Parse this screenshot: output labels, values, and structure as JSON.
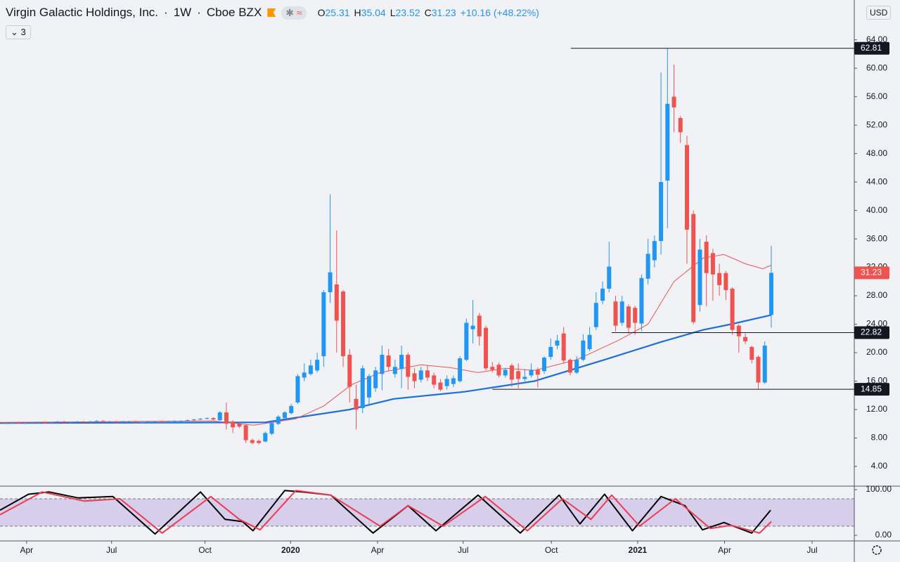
{
  "chart_data": {
    "type": "candlestick",
    "title": "Virgin Galactic Holdings, Inc.",
    "interval": "1W",
    "exchange": "Cboe BZX",
    "indicators_badge": 3,
    "ohlc_labels": [
      "O",
      "H",
      "L",
      "C"
    ],
    "change": "+10.16 (+48.22%)",
    "currency": "USD",
    "up_color": "#2196f3",
    "down_color": "#ef5350",
    "x": [
      -44,
      -43,
      -42,
      -41,
      -40,
      -39,
      -38,
      -37,
      -36,
      -35,
      -34,
      -33,
      -32,
      -31,
      -30,
      -29,
      -28,
      -27,
      -26,
      -25,
      -24,
      -23,
      -22,
      -21,
      -20,
      -19,
      -18,
      -17,
      -16,
      -15,
      -14,
      -13,
      -12,
      -11,
      -10,
      -9,
      -8,
      -7,
      -6,
      -5,
      -4,
      -3,
      -2,
      -1,
      0,
      1,
      2,
      3,
      4,
      5,
      6,
      7,
      8,
      9,
      10,
      11,
      12,
      13,
      14,
      15,
      16,
      17,
      18,
      19,
      20,
      21,
      22,
      23,
      24,
      25,
      26,
      27,
      28,
      29,
      30,
      31,
      32,
      33,
      34,
      35,
      36,
      37,
      38,
      39,
      40,
      41,
      42,
      43,
      44,
      45,
      46,
      47,
      48,
      49,
      50,
      51,
      52,
      53,
      54,
      55,
      56,
      57,
      58,
      59,
      60,
      61,
      62,
      63,
      64,
      65,
      66,
      67,
      68,
      69,
      70,
      71,
      72,
      73,
      74
    ],
    "open": [
      10.1,
      10.1,
      10.2,
      10.1,
      10.1,
      10.2,
      10.2,
      10.1,
      10.2,
      10.3,
      10.2,
      10.2,
      10.3,
      10.2,
      10.3,
      10.4,
      10.3,
      10.3,
      10.2,
      10.3,
      10.3,
      10.2,
      10.2,
      10.3,
      10.3,
      10.2,
      10.3,
      10.4,
      10.4,
      10.5,
      10.6,
      10.7,
      10.8,
      10.5,
      11.6,
      10.3,
      10.0,
      9.8,
      7.7,
      7.6,
      7.5,
      8.6,
      10.0,
      10.8,
      11.5,
      13.0,
      16.5,
      17.0,
      17.5,
      19.5,
      28.5,
      29.6,
      28.6,
      19.7,
      13.5,
      12.2,
      13.7,
      15.0,
      17.0,
      19.6,
      17.0,
      17.7,
      19.7,
      17.1,
      16.2,
      17.5,
      16.8,
      15.8,
      15.3,
      15.6,
      16.0,
      19.0,
      23.3,
      25.2,
      23.5,
      18.0,
      18.3,
      16.8,
      18.2,
      17.4,
      16.3,
      16.8,
      17.6,
      17.4,
      19.4,
      21.0,
      22.7,
      19.0,
      17.2,
      19.0,
      20.5,
      23.6,
      27.3,
      29.0,
      27.2,
      24.2,
      26.5,
      26.3,
      24.1,
      30.4,
      33.0,
      35.7,
      44.2,
      56.0,
      53.0,
      49.2,
      39.5,
      26.7,
      35.6,
      34.0,
      31.2,
      31.2,
      29.0,
      23.8,
      22.2,
      20.8,
      19.4,
      15.8,
      25.31
    ],
    "high": [
      10.2,
      10.3,
      10.3,
      10.2,
      10.3,
      10.3,
      10.3,
      10.3,
      10.4,
      10.4,
      10.3,
      10.4,
      10.4,
      10.4,
      10.5,
      10.5,
      10.4,
      10.4,
      10.4,
      10.4,
      10.4,
      10.3,
      10.4,
      10.4,
      10.4,
      10.4,
      10.5,
      10.5,
      10.6,
      10.7,
      10.8,
      10.9,
      10.9,
      11.8,
      13.0,
      10.5,
      10.2,
      9.9,
      7.9,
      7.8,
      8.9,
      10.3,
      11.2,
      11.8,
      12.8,
      17.0,
      18.5,
      19.0,
      20.0,
      28.8,
      42.3,
      37.2,
      28.8,
      20.5,
      15.5,
      18.2,
      17.0,
      18.0,
      21.0,
      20.5,
      19.0,
      21.0,
      20.0,
      17.8,
      18.0,
      18.2,
      17.2,
      16.3,
      16.8,
      16.8,
      19.5,
      24.8,
      27.4,
      25.6,
      23.8,
      18.7,
      18.6,
      17.8,
      18.5,
      18.5,
      17.7,
      18.5,
      17.9,
      19.5,
      22.0,
      22.5,
      23.6,
      19.2,
      19.5,
      22.6,
      23.6,
      28.5,
      30.0,
      35.6,
      28.0,
      28.0,
      26.8,
      26.6,
      31.0,
      36.0,
      36.5,
      59.4,
      62.81,
      60.5,
      53.3,
      50.5,
      40.0,
      36.0,
      36.5,
      34.6,
      32.5,
      31.5,
      29.2,
      24.0,
      22.7,
      21.0,
      19.6,
      21.6,
      35.04
    ],
    "low": [
      10.0,
      10.0,
      10.0,
      10.0,
      10.0,
      10.1,
      10.0,
      10.0,
      10.1,
      10.1,
      10.1,
      10.1,
      10.1,
      10.1,
      10.2,
      10.2,
      10.2,
      10.1,
      10.1,
      10.2,
      10.1,
      10.1,
      10.1,
      10.2,
      10.1,
      10.1,
      10.2,
      10.3,
      10.3,
      10.4,
      10.5,
      10.6,
      10.5,
      10.4,
      9.2,
      8.7,
      9.4,
      7.3,
      7.1,
      7.1,
      7.4,
      8.4,
      9.8,
      10.6,
      11.3,
      12.8,
      16.0,
      16.8,
      17.2,
      18.0,
      27.0,
      20.0,
      18.0,
      13.0,
      9.2,
      11.5,
      12.5,
      14.5,
      14.7,
      17.5,
      16.5,
      15.0,
      14.8,
      15.0,
      15.8,
      16.0,
      15.0,
      14.6,
      14.8,
      15.2,
      15.8,
      18.8,
      21.3,
      21.0,
      17.5,
      17.2,
      16.5,
      16.5,
      15.2,
      15.0,
      16.0,
      16.5,
      15.1,
      17.0,
      19.0,
      20.5,
      18.5,
      16.8,
      17.0,
      18.8,
      20.2,
      23.2,
      26.8,
      28.5,
      23.0,
      23.8,
      22.7,
      22.5,
      23.0,
      29.6,
      32.0,
      33.8,
      37.5,
      51.0,
      49.5,
      32.5,
      24.0,
      25.8,
      26.5,
      27.3,
      28.0,
      27.4,
      22.5,
      20.0,
      21.2,
      18.5,
      14.85,
      15.6,
      23.52
    ],
    "close": [
      10.1,
      10.2,
      10.1,
      10.1,
      10.2,
      10.2,
      10.1,
      10.2,
      10.3,
      10.2,
      10.2,
      10.3,
      10.2,
      10.3,
      10.4,
      10.3,
      10.3,
      10.2,
      10.3,
      10.3,
      10.2,
      10.2,
      10.3,
      10.3,
      10.2,
      10.3,
      10.4,
      10.4,
      10.5,
      10.6,
      10.7,
      10.8,
      10.6,
      11.6,
      10.0,
      9.5,
      9.6,
      7.7,
      7.3,
      7.3,
      8.7,
      10.1,
      11.0,
      11.6,
      12.5,
      16.7,
      17.2,
      18.2,
      19.0,
      28.5,
      31.3,
      24.5,
      19.5,
      15.2,
      12.0,
      17.8,
      16.7,
      17.5,
      19.7,
      18.0,
      18.0,
      19.7,
      16.6,
      16.0,
      17.5,
      16.5,
      15.5,
      14.8,
      16.3,
      16.4,
      19.2,
      24.2,
      23.8,
      22.3,
      17.8,
      17.6,
      16.8,
      17.6,
      16.2,
      16.3,
      16.6,
      17.6,
      16.9,
      19.3,
      20.8,
      21.7,
      18.9,
      17.2,
      19.0,
      21.7,
      22.5,
      27.0,
      29.0,
      32.1,
      23.8,
      27.2,
      23.5,
      24.2,
      30.5,
      33.9,
      35.7,
      44.0,
      55.0,
      54.5,
      51.0,
      37.3,
      24.3,
      34.5,
      31.2,
      31.0,
      29.5,
      28.8,
      23.2,
      22.3,
      21.6,
      19.0,
      15.8,
      21.0,
      31.23
    ],
    "xlim": [
      -44.9,
      86.8
    ],
    "xticks": [
      {
        "value": -40.8,
        "label": "Apr"
      },
      {
        "value": -27.7,
        "label": "Jul"
      },
      {
        "value": -13.3,
        "label": "Oct"
      },
      {
        "value": -0.1,
        "label": "2020"
      },
      {
        "value": 13.3,
        "label": "Apr"
      },
      {
        "value": 26.5,
        "label": "Jul"
      },
      {
        "value": 40.1,
        "label": "Oct"
      },
      {
        "value": 53.4,
        "label": "2021"
      },
      {
        "value": 66.8,
        "label": "Apr"
      },
      {
        "value": 80.3,
        "label": "Jul"
      }
    ],
    "ylim": [
      1.23,
      69.6
    ],
    "yticks": [
      {
        "value": 4,
        "label": "4.00"
      },
      {
        "value": 8,
        "label": "8.00"
      },
      {
        "value": 12,
        "label": "12.00"
      },
      {
        "value": 16,
        "label": "16.00"
      },
      {
        "value": 20,
        "label": "20.00"
      },
      {
        "value": 24,
        "label": "24.00"
      },
      {
        "value": 28,
        "label": "28.00"
      },
      {
        "value": 32,
        "label": "32.00"
      },
      {
        "value": 36,
        "label": "36.00"
      },
      {
        "value": 40,
        "label": "40.00"
      },
      {
        "value": 44,
        "label": "44.00"
      },
      {
        "value": 48,
        "label": "48.00"
      },
      {
        "value": 52,
        "label": "52.00"
      },
      {
        "value": 56,
        "label": "56.00"
      },
      {
        "value": 60,
        "label": "60.00"
      },
      {
        "value": 64,
        "label": "64.00"
      }
    ],
    "moving_averages": [
      {
        "color": "#1e6fd9",
        "width": 2.2,
        "x": [
          -44.9,
          -20,
          -4,
          9,
          15.8,
          26.7,
          37.5,
          48.3,
          57,
          63.5,
          67.8,
          74
        ],
        "values": [
          10.1,
          10.15,
          10.2,
          12,
          13.5,
          14.5,
          16,
          19,
          21.5,
          23.2,
          24,
          25.3
        ]
      },
      {
        "color": "#ef5350",
        "width": 1,
        "x": [
          -44.9,
          -12,
          -5.8,
          0.7,
          5,
          9.3,
          13.7,
          20,
          24.5,
          28.8,
          33,
          37.5,
          44,
          50.6,
          55,
          59,
          63.5,
          66.7,
          70,
          72.7,
          74
        ],
        "values": [
          10.2,
          10.4,
          9.8,
          10.7,
          12.5,
          15.5,
          17.2,
          18.3,
          17.9,
          17.2,
          17.8,
          17.5,
          19,
          21.8,
          24,
          30,
          33.3,
          33.8,
          32.5,
          31.8,
          32.3
        ]
      }
    ],
    "levels": [
      {
        "value": 62.81,
        "from": 43.1
      },
      {
        "value": 22.82,
        "from": 49.4
      },
      {
        "value": 14.85,
        "from": 31.0
      }
    ],
    "oscillator": {
      "ylim": [
        -12.3,
        107.7
      ],
      "yticks": [
        {
          "value": 100,
          "label": "100.00"
        },
        {
          "value": 0,
          "label": "0.00"
        }
      ],
      "bands": [
        20,
        80
      ],
      "band_color": "#d1c4e9",
      "series": [
        {
          "color": "#000000",
          "x": [
            -44.9,
            -40.5,
            -37.3,
            -32.9,
            -27.5,
            -21.0,
            -14.0,
            -10.2,
            -7.5,
            -5.9,
            -1.0,
            1.7,
            6.1,
            12.6,
            18.0,
            22.3,
            28.8,
            35.3,
            41.3,
            44.5,
            48.3,
            52.6,
            57.0,
            60.7,
            63.4,
            66.7,
            71.0,
            73.9
          ],
          "values": [
            55,
            90,
            95,
            82,
            85,
            3,
            95,
            35,
            30,
            10,
            98,
            95,
            88,
            5,
            65,
            10,
            88,
            5,
            88,
            25,
            90,
            10,
            85,
            65,
            12,
            28,
            5,
            55
          ]
        },
        {
          "color": "#ef3b50",
          "x": [
            -44.9,
            -38.4,
            -31.9,
            -26.4,
            -19.9,
            -12.4,
            -8.0,
            -4.8,
            0.7,
            6.1,
            13.7,
            18.0,
            23.4,
            29.9,
            36.4,
            41.8,
            46.2,
            49.4,
            53.7,
            59.2,
            64.6,
            67.8,
            72.2,
            74.0
          ],
          "values": [
            45,
            95,
            75,
            80,
            5,
            85,
            35,
            12,
            98,
            88,
            20,
            65,
            20,
            85,
            10,
            80,
            35,
            88,
            20,
            80,
            15,
            22,
            5,
            30
          ]
        }
      ]
    }
  }
}
